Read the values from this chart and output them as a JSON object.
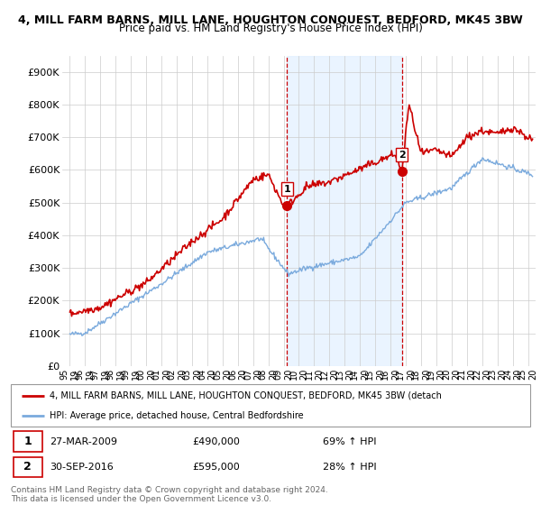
{
  "title1": "4, MILL FARM BARNS, MILL LANE, HOUGHTON CONQUEST, BEDFORD, MK45 3BW",
  "title2": "Price paid vs. HM Land Registry's House Price Index (HPI)",
  "ylabel_ticks": [
    "£0",
    "£100K",
    "£200K",
    "£300K",
    "£400K",
    "£500K",
    "£600K",
    "£700K",
    "£800K",
    "£900K"
  ],
  "ytick_values": [
    0,
    100000,
    200000,
    300000,
    400000,
    500000,
    600000,
    700000,
    800000,
    900000
  ],
  "ylim": [
    0,
    950000
  ],
  "sale1_date": "27-MAR-2009",
  "sale1_price": 490000,
  "sale1_hpi": "69% ↑ HPI",
  "sale1_label": "1",
  "sale1_x": 2009.23,
  "sale2_date": "30-SEP-2016",
  "sale2_price": 595000,
  "sale2_hpi": "28% ↑ HPI",
  "sale2_label": "2",
  "sale2_x": 2016.75,
  "hpi_color": "#7aaadd",
  "price_color": "#cc0000",
  "vline_color": "#cc0000",
  "shade_color": "#ddeeff",
  "legend_label1": "4, MILL FARM BARNS, MILL LANE, HOUGHTON CONQUEST, BEDFORD, MK45 3BW (detach",
  "legend_label2": "HPI: Average price, detached house, Central Bedfordshire",
  "footnote": "Contains HM Land Registry data © Crown copyright and database right 2024.\nThis data is licensed under the Open Government Licence v3.0.",
  "xlim_start": 1994.5,
  "xlim_end": 2025.5
}
